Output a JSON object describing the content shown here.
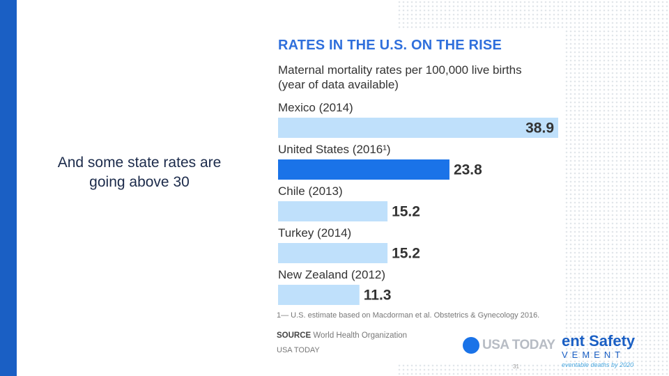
{
  "slide": {
    "caption": "And some state rates are going above 30",
    "page_number": "31"
  },
  "chart_data": {
    "type": "bar",
    "orientation": "horizontal",
    "title": "RATES IN THE U.S. ON THE RISE",
    "subtitle": "Maternal mortality rates per 100,000 live births (year of data available)",
    "categories": [
      "Mexico (2014)",
      "United States (2016¹)",
      "Chile (2013)",
      "Turkey (2014)",
      "New Zealand (2012)"
    ],
    "values": [
      38.9,
      23.8,
      15.2,
      15.2,
      11.3
    ],
    "value_labels": [
      "38.9",
      "23.8",
      "15.2",
      "15.2",
      "11.3"
    ],
    "highlight_index": 1,
    "xlim": [
      0,
      38.9
    ],
    "colors": {
      "bar": "#bfe0fb",
      "highlight": "#1a73e8",
      "label": "#333333"
    },
    "footnote": "1— U.S. estimate based on Macdorman et al. Obstetrics & Gynecology 2016.",
    "source_label": "SOURCE",
    "source_text": "World Health Organization",
    "credit": "USA TODAY"
  },
  "logos": {
    "usa_today": "USA TODAY",
    "psm_line1": "ent Safety",
    "psm_line2": "VEMENT",
    "psm_line3": "eventable deaths by 2020"
  },
  "colors": {
    "side_bar": "#1a5fc4",
    "title": "#2f6fdc"
  }
}
